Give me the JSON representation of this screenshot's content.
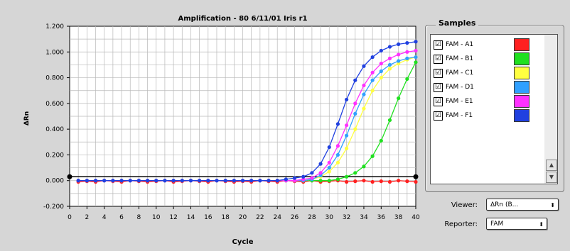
{
  "chart_data": {
    "type": "line",
    "title": "Amplification - 80 6/11/01 Iris r1",
    "xlabel": "Cycle",
    "ylabel": "ΔRn",
    "xlim": [
      0,
      40
    ],
    "ylim": [
      -0.2,
      1.2
    ],
    "x_ticks": [
      0,
      2,
      4,
      6,
      8,
      10,
      12,
      14,
      16,
      18,
      20,
      22,
      24,
      26,
      28,
      30,
      32,
      34,
      36,
      38,
      40
    ],
    "y_ticks": [
      "-0.200",
      "0.000",
      "0.200",
      "0.400",
      "0.600",
      "0.800",
      "1.000",
      "1.200"
    ],
    "y_tick_values": [
      -0.2,
      0,
      0.2,
      0.4,
      0.6,
      0.8,
      1.0,
      1.2
    ],
    "threshold": 0.03,
    "grid": true,
    "x": [
      1,
      2,
      3,
      4,
      5,
      6,
      7,
      8,
      9,
      10,
      11,
      12,
      13,
      14,
      15,
      16,
      17,
      18,
      19,
      20,
      21,
      22,
      23,
      24,
      25,
      26,
      27,
      28,
      29,
      30,
      31,
      32,
      33,
      34,
      35,
      36,
      37,
      38,
      39,
      40
    ],
    "series": [
      {
        "name": "FAM - A1",
        "color": "#ff2020",
        "values": [
          -0.01,
          -0.005,
          -0.01,
          0.0,
          -0.005,
          -0.01,
          0.0,
          -0.005,
          -0.01,
          -0.005,
          0.0,
          -0.01,
          -0.005,
          0.0,
          -0.005,
          -0.01,
          0.0,
          -0.005,
          -0.01,
          -0.005,
          -0.01,
          0.0,
          -0.005,
          -0.01,
          0.0,
          -0.005,
          -0.01,
          0.0,
          -0.01,
          -0.005,
          0.0,
          -0.01,
          -0.005,
          0.0,
          -0.01,
          -0.005,
          -0.01,
          0.0,
          -0.005,
          -0.01
        ]
      },
      {
        "name": "FAM - B1",
        "color": "#20e020",
        "values": [
          0.0,
          0.0,
          0.0,
          0.0,
          0.0,
          0.0,
          0.0,
          0.0,
          0.0,
          0.0,
          0.0,
          0.0,
          0.0,
          0.0,
          0.0,
          0.0,
          0.0,
          0.0,
          0.0,
          0.0,
          0.0,
          0.0,
          0.0,
          0.0,
          0.0,
          0.0,
          0.0,
          0.0,
          0.0,
          0.0,
          0.01,
          0.03,
          0.06,
          0.11,
          0.19,
          0.31,
          0.47,
          0.64,
          0.79,
          0.92
        ]
      },
      {
        "name": "FAM - C1",
        "color": "#ffff40",
        "values": [
          0.0,
          0.0,
          0.0,
          0.0,
          0.0,
          0.0,
          0.0,
          0.0,
          0.0,
          0.0,
          0.0,
          0.0,
          0.0,
          0.0,
          0.0,
          0.0,
          0.0,
          0.0,
          0.0,
          0.0,
          0.0,
          0.0,
          0.0,
          0.0,
          0.0,
          0.0,
          0.0,
          0.01,
          0.03,
          0.07,
          0.14,
          0.25,
          0.4,
          0.56,
          0.7,
          0.8,
          0.87,
          0.91,
          0.94,
          0.96
        ]
      },
      {
        "name": "FAM - D1",
        "color": "#30a0ff",
        "values": [
          0.0,
          0.0,
          0.0,
          0.0,
          0.0,
          0.0,
          0.0,
          0.0,
          0.0,
          0.0,
          0.0,
          0.0,
          0.0,
          0.0,
          0.0,
          0.0,
          0.0,
          0.0,
          0.0,
          0.0,
          0.0,
          0.0,
          0.0,
          0.0,
          0.0,
          0.0,
          0.0,
          0.01,
          0.04,
          0.1,
          0.2,
          0.35,
          0.52,
          0.67,
          0.78,
          0.85,
          0.9,
          0.93,
          0.95,
          0.96
        ]
      },
      {
        "name": "FAM - E1",
        "color": "#ff30ff",
        "values": [
          0.0,
          0.0,
          0.0,
          0.0,
          0.0,
          0.0,
          0.0,
          0.0,
          0.0,
          0.0,
          0.0,
          0.0,
          0.0,
          0.0,
          0.0,
          0.0,
          0.0,
          0.0,
          0.0,
          0.0,
          0.0,
          0.0,
          0.0,
          0.0,
          0.0,
          0.0,
          0.01,
          0.02,
          0.06,
          0.14,
          0.27,
          0.43,
          0.6,
          0.74,
          0.84,
          0.91,
          0.95,
          0.98,
          1.0,
          1.01
        ]
      },
      {
        "name": "FAM - F1",
        "color": "#2040e0",
        "values": [
          0.0,
          0.0,
          0.0,
          0.0,
          0.0,
          0.0,
          0.0,
          0.0,
          0.0,
          0.0,
          0.0,
          0.0,
          0.0,
          0.0,
          0.0,
          0.0,
          0.0,
          0.0,
          0.0,
          0.0,
          0.0,
          0.0,
          0.0,
          0.0,
          0.01,
          0.02,
          0.03,
          0.06,
          0.13,
          0.26,
          0.44,
          0.63,
          0.78,
          0.89,
          0.96,
          1.01,
          1.04,
          1.06,
          1.07,
          1.08
        ]
      }
    ]
  },
  "samples": {
    "title": "Samples",
    "items": [
      {
        "label": "FAM - A1",
        "checked": "☑",
        "color": "#ff2020"
      },
      {
        "label": "FAM - B1",
        "checked": "☑",
        "color": "#20e020"
      },
      {
        "label": "FAM - C1",
        "checked": "☑",
        "color": "#ffff40"
      },
      {
        "label": "FAM - D1",
        "checked": "☑",
        "color": "#30a0ff"
      },
      {
        "label": "FAM - E1",
        "checked": "☑",
        "color": "#ff30ff"
      },
      {
        "label": "FAM - F1",
        "checked": "☑",
        "color": "#2040e0"
      }
    ]
  },
  "controls": {
    "viewer_label": "Viewer:",
    "viewer_value": "ΔRn (B...",
    "reporter_label": "Reporter:",
    "reporter_value": "FAM"
  },
  "icons": {
    "scroll_up": "▲",
    "scroll_down": "▼",
    "popup_arrow": "⬍"
  }
}
